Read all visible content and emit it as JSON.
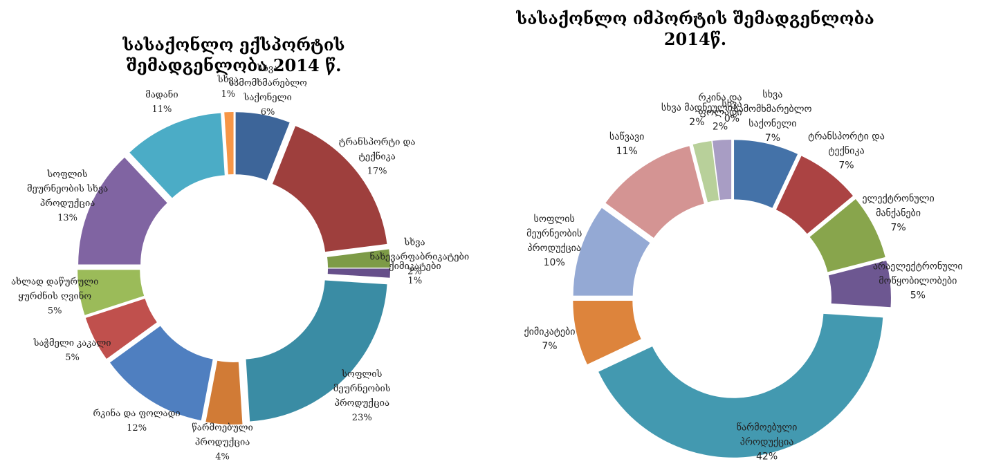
{
  "chart_data": [
    {
      "type": "pie",
      "title": "სასაქონლო ექსპორტის შემადგენლობა 2014 წ.",
      "categories": [
        "სხვა სამომხმარებლო საქონელი",
        "ტრანსპორტი და ტექნიკა",
        "სხვა ნახევარფაბრიკატები",
        "ქიმიკატები",
        "სოფლის მეურნეობის პროდუქცია",
        "წარმოებული პროდუქცია",
        "რკინა და ფოლადი",
        "საჭმელი კაკალი",
        "ახლად დაწურული ყურძნის ღვინო",
        "სოფლის მეურნეობის სხვა პროდუქცია",
        "მადანი",
        "სხვა"
      ],
      "values": [
        6,
        17,
        2,
        1,
        23,
        4,
        12,
        5,
        5,
        13,
        11,
        1
      ],
      "value_labels": [
        "6%",
        "17%",
        "2%",
        "1%",
        "23%",
        "4%",
        "12%",
        "5%",
        "5%",
        "13%",
        "11%",
        "1%"
      ],
      "colors": [
        "#3d6599",
        "#9e3f3d",
        "#7d9b47",
        "#664f8a",
        "#3a8ca4",
        "#d17b36",
        "#4f7fc0",
        "#c0504d",
        "#9bbb59",
        "#8064a2",
        "#4bacc6",
        "#f79646"
      ]
    },
    {
      "type": "pie",
      "title": "სასაქონლო იმპორტის შემადგენლობა 2014წ.",
      "categories": [
        "სხვა სამომხმარებლო საქონელი",
        "ტრანსპორტი და ტექნიკა",
        "ელექტრონული მანქანები",
        "არაელექტრონული მოწყობილობები",
        "წარმოებული პროდუქცია",
        "ქიმიკატები",
        "სოფლის მეურნეობის პროდუქცია",
        "საწვავი",
        "სხვა მადნეული",
        "რკინა და ფოლადი",
        "სხვა"
      ],
      "values": [
        7,
        7,
        7,
        5,
        42,
        7,
        10,
        11,
        2,
        2,
        0
      ],
      "value_labels": [
        "7%",
        "7%",
        "7%",
        "5%",
        "42%",
        "7%",
        "10%",
        "11%",
        "2%",
        "2%",
        "0%"
      ],
      "colors": [
        "#4472a8",
        "#ab4343",
        "#88a54c",
        "#6d5791",
        "#4399b0",
        "#dd843c",
        "#94a9d4",
        "#d49493",
        "#b8d09a",
        "#a89dc4",
        "#8ab4d6"
      ]
    }
  ]
}
